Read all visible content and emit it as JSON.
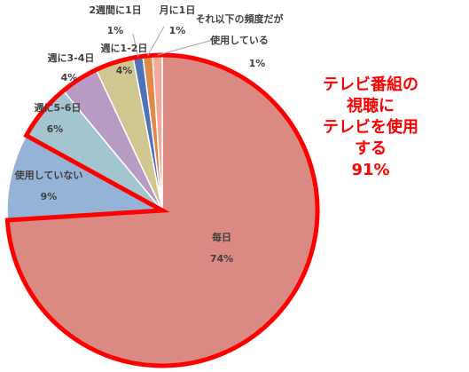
{
  "chart_data": {
    "type": "pie",
    "categories": [
      "毎日",
      "使用していない",
      "週に5-6日",
      "週に3-4日",
      "週に1-2日",
      "2週間に1日",
      "月に1日",
      "それ以下の頻度だが\n使用している"
    ],
    "values": [
      74,
      9,
      6,
      4,
      4,
      1,
      1,
      1
    ],
    "value_labels": [
      "74%",
      "9%",
      "6%",
      "4%",
      "4%",
      "1%",
      "1%",
      "1%"
    ],
    "colors": [
      "#db8a83",
      "#95b3d7",
      "#a3c5cf",
      "#b79bc2",
      "#cfc690",
      "#4f71b8",
      "#e0894a",
      "#f0a99a"
    ],
    "annotation": "テレビ番組の視聴に\nテレビを使用する\n91%"
  }
}
